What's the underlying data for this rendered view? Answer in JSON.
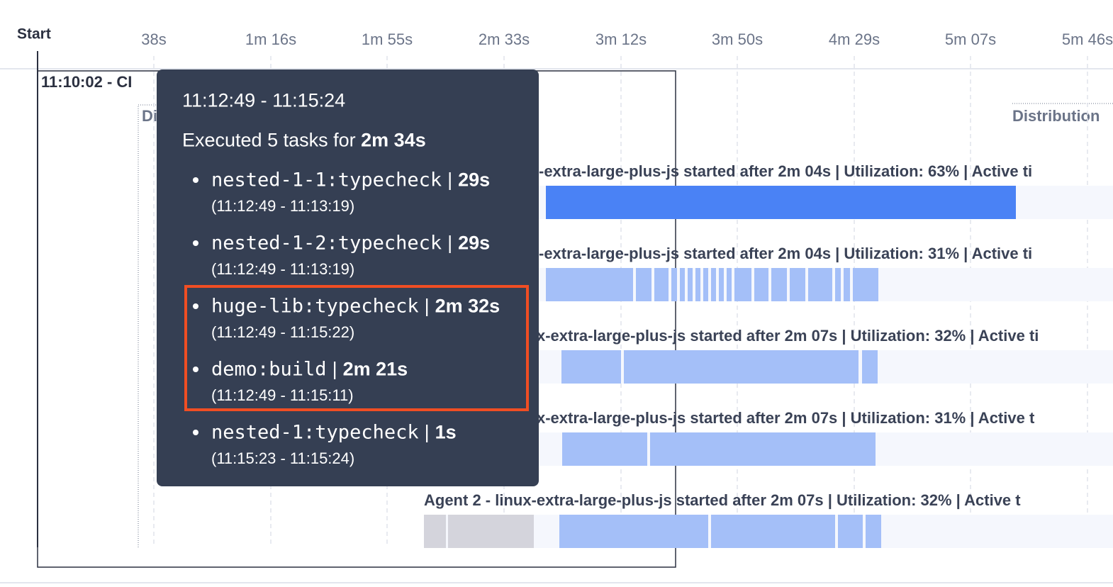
{
  "header": {
    "start": "Start",
    "ticks": [
      "38s",
      "1m 16s",
      "1m 55s",
      "2m 33s",
      "3m 12s",
      "3m 50s",
      "4m 29s",
      "5m 07s",
      "5m 46s"
    ]
  },
  "timeline": {
    "run_label": "11:10:02 - CI",
    "group_label_left": "Di",
    "group_label_right": "Distribution",
    "agents": [
      {
        "label": "-extra-large-plus-js started after 2m 04s | Utilization: 63% | Active ti"
      },
      {
        "label": "-extra-large-plus-js started after 2m 04s | Utilization: 31% | Active ti"
      },
      {
        "label": "x-extra-large-plus-js started after 2m 07s | Utilization: 32% | Active ti"
      },
      {
        "label": "x-extra-large-plus-js started after 2m 07s | Utilization: 31% | Active t"
      },
      {
        "label": "Agent 2 - linux-extra-large-plus-js started after 2m 07s | Utilization: 32% | Active t"
      }
    ]
  },
  "tooltip": {
    "time_range": "11:12:49 - 11:15:24",
    "summary": "Executed 5 tasks for",
    "summary_duration": "2m 34s",
    "separator": "|",
    "tasks": [
      {
        "name": "nested-1-1:typecheck",
        "duration": "29s",
        "range": "(11:12:49 - 11:13:19)"
      },
      {
        "name": "nested-1-2:typecheck",
        "duration": "29s",
        "range": "(11:12:49 - 11:13:19)"
      },
      {
        "name": "huge-lib:typecheck",
        "duration": "2m 32s",
        "range": "(11:12:49 - 11:15:22)"
      },
      {
        "name": "demo:build",
        "duration": "2m 21s",
        "range": "(11:12:49 - 11:15:11)"
      },
      {
        "name": "nested-1:typecheck",
        "duration": "1s",
        "range": "(11:15:23 - 11:15:24)"
      }
    ]
  }
}
